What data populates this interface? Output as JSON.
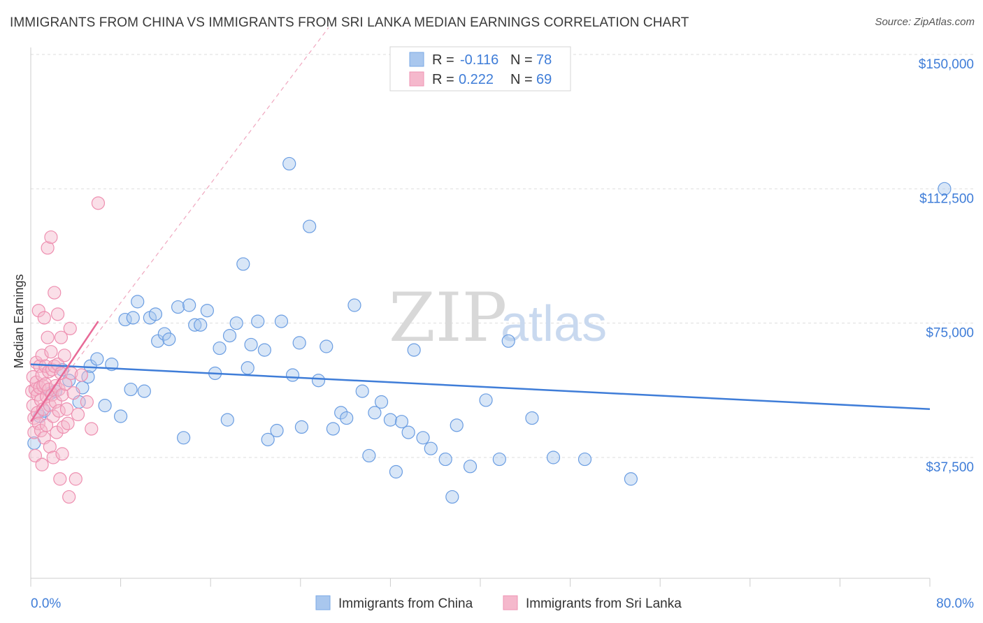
{
  "header": {
    "title": "IMMIGRANTS FROM CHINA VS IMMIGRANTS FROM SRI LANKA MEDIAN EARNINGS CORRELATION CHART",
    "source": "Source: ZipAtlas.com"
  },
  "watermark": {
    "zip": "ZIP",
    "atlas": "atlas"
  },
  "colors": {
    "china": "#3f7dd8",
    "china_fill": "#a9c7ee",
    "srilanka": "#e86a97",
    "srilanka_fill": "#f5b8cc",
    "grid": "#dddddd",
    "axis_text": "#3f7dd8"
  },
  "legend": {
    "rows": [
      {
        "r_label": "R =",
        "r_value": "-0.116",
        "n_label": "N =",
        "n_value": "78"
      },
      {
        "r_label": "R =",
        "r_value": "0.222",
        "n_label": "N =",
        "n_value": "69"
      }
    ]
  },
  "chart_data": {
    "type": "scatter",
    "title": "IMMIGRANTS FROM CHINA VS IMMIGRANTS FROM SRI LANKA MEDIAN EARNINGS CORRELATION CHART",
    "xlabel": "",
    "ylabel": "Median Earnings",
    "xlim": [
      0,
      80
    ],
    "ylim": [
      10000,
      157500
    ],
    "x_tick_labels": [
      "0.0%",
      "80.0%"
    ],
    "y_ticks": [
      37500,
      75000,
      112500,
      150000
    ],
    "y_tick_labels": [
      "$37,500",
      "$75,000",
      "$112,500",
      "$150,000"
    ],
    "series": [
      {
        "name": "Immigrants from China",
        "r": -0.116,
        "n": 78,
        "trend": {
          "x": [
            0,
            80
          ],
          "y": [
            63500,
            51000
          ]
        },
        "points": [
          [
            0.3,
            41500
          ],
          [
            0.8,
            49000
          ],
          [
            1.2,
            50500
          ],
          [
            1.8,
            55500
          ],
          [
            2.2,
            56000
          ],
          [
            2.8,
            62000
          ],
          [
            3.4,
            59000
          ],
          [
            4.3,
            53000
          ],
          [
            4.6,
            57000
          ],
          [
            5.1,
            60000
          ],
          [
            5.3,
            63000
          ],
          [
            5.9,
            65000
          ],
          [
            6.6,
            52000
          ],
          [
            7.2,
            63500
          ],
          [
            8.0,
            49000
          ],
          [
            8.4,
            76000
          ],
          [
            8.9,
            56500
          ],
          [
            9.1,
            76500
          ],
          [
            9.5,
            81000
          ],
          [
            10.1,
            56000
          ],
          [
            10.6,
            76500
          ],
          [
            11.1,
            77500
          ],
          [
            11.3,
            70000
          ],
          [
            11.9,
            72000
          ],
          [
            12.3,
            70500
          ],
          [
            13.1,
            79500
          ],
          [
            13.6,
            43000
          ],
          [
            14.1,
            80000
          ],
          [
            14.6,
            74500
          ],
          [
            15.1,
            74500
          ],
          [
            15.7,
            78500
          ],
          [
            16.4,
            61000
          ],
          [
            16.8,
            68000
          ],
          [
            17.5,
            48000
          ],
          [
            17.7,
            71500
          ],
          [
            18.3,
            75000
          ],
          [
            18.9,
            91500
          ],
          [
            19.3,
            62500
          ],
          [
            19.6,
            69000
          ],
          [
            20.2,
            75500
          ],
          [
            20.8,
            67500
          ],
          [
            21.1,
            42500
          ],
          [
            21.9,
            45000
          ],
          [
            22.3,
            75500
          ],
          [
            23.0,
            119500
          ],
          [
            23.3,
            60500
          ],
          [
            23.9,
            69500
          ],
          [
            24.1,
            46000
          ],
          [
            24.8,
            102000
          ],
          [
            25.6,
            59000
          ],
          [
            26.3,
            68500
          ],
          [
            26.9,
            45500
          ],
          [
            27.6,
            50000
          ],
          [
            28.1,
            48500
          ],
          [
            28.8,
            80000
          ],
          [
            29.5,
            56000
          ],
          [
            30.1,
            38000
          ],
          [
            30.6,
            50000
          ],
          [
            31.2,
            53000
          ],
          [
            32.0,
            48000
          ],
          [
            32.5,
            33500
          ],
          [
            33.0,
            47500
          ],
          [
            33.6,
            44500
          ],
          [
            34.1,
            67500
          ],
          [
            34.9,
            43000
          ],
          [
            35.6,
            40000
          ],
          [
            36.9,
            37000
          ],
          [
            37.5,
            26500
          ],
          [
            37.9,
            46500
          ],
          [
            39.1,
            35000
          ],
          [
            40.5,
            53500
          ],
          [
            41.7,
            37000
          ],
          [
            42.5,
            70000
          ],
          [
            44.6,
            48500
          ],
          [
            46.5,
            37500
          ],
          [
            49.3,
            37000
          ],
          [
            53.4,
            31500
          ],
          [
            81.3,
            112500
          ]
        ]
      },
      {
        "name": "Immigrants from Sri Lanka",
        "r": 0.222,
        "n": 69,
        "trend": {
          "x": [
            0,
            6.0
          ],
          "y": [
            47500,
            75500
          ]
        },
        "points": [
          [
            0.1,
            56000
          ],
          [
            0.2,
            60000
          ],
          [
            0.2,
            52000
          ],
          [
            0.3,
            48500
          ],
          [
            0.3,
            44500
          ],
          [
            0.4,
            56500
          ],
          [
            0.5,
            64000
          ],
          [
            0.5,
            58500
          ],
          [
            0.6,
            55000
          ],
          [
            0.6,
            50000
          ],
          [
            0.7,
            47000
          ],
          [
            0.7,
            78500
          ],
          [
            0.8,
            63000
          ],
          [
            0.8,
            57000
          ],
          [
            0.9,
            53500
          ],
          [
            0.9,
            45000
          ],
          [
            1.0,
            66000
          ],
          [
            1.0,
            60500
          ],
          [
            1.1,
            57500
          ],
          [
            1.1,
            51000
          ],
          [
            1.2,
            43000
          ],
          [
            1.2,
            76500
          ],
          [
            1.3,
            63000
          ],
          [
            1.3,
            58000
          ],
          [
            1.4,
            54500
          ],
          [
            1.4,
            46500
          ],
          [
            1.5,
            96000
          ],
          [
            1.5,
            71000
          ],
          [
            1.6,
            61500
          ],
          [
            1.6,
            56500
          ],
          [
            1.7,
            52000
          ],
          [
            1.7,
            40500
          ],
          [
            1.8,
            99000
          ],
          [
            1.8,
            67000
          ],
          [
            1.9,
            62000
          ],
          [
            1.9,
            55000
          ],
          [
            2.0,
            49000
          ],
          [
            2.0,
            37500
          ],
          [
            2.1,
            83500
          ],
          [
            2.1,
            63000
          ],
          [
            2.2,
            57500
          ],
          [
            2.2,
            53000
          ],
          [
            2.3,
            44500
          ],
          [
            2.4,
            77500
          ],
          [
            2.4,
            63500
          ],
          [
            2.5,
            56500
          ],
          [
            2.5,
            50500
          ],
          [
            2.6,
            31500
          ],
          [
            2.7,
            71000
          ],
          [
            2.7,
            61000
          ],
          [
            2.8,
            55000
          ],
          [
            2.9,
            46000
          ],
          [
            3.0,
            66000
          ],
          [
            3.1,
            58000
          ],
          [
            3.2,
            51000
          ],
          [
            3.3,
            47000
          ],
          [
            3.4,
            26500
          ],
          [
            3.5,
            73500
          ],
          [
            3.6,
            61000
          ],
          [
            3.8,
            55500
          ],
          [
            4.0,
            31500
          ],
          [
            4.2,
            49500
          ],
          [
            4.5,
            60500
          ],
          [
            5.0,
            53000
          ],
          [
            5.4,
            45500
          ],
          [
            6.0,
            108500
          ],
          [
            0.4,
            38000
          ],
          [
            1.0,
            35500
          ],
          [
            2.8,
            38500
          ]
        ]
      }
    ],
    "reference_line": {
      "style": "dashed",
      "color": "#f0a7bf",
      "x": [
        0,
        26.5
      ],
      "y": [
        47500,
        157500
      ]
    }
  },
  "bottom_legend": {
    "items": [
      "Immigrants from China",
      "Immigrants from Sri Lanka"
    ]
  }
}
